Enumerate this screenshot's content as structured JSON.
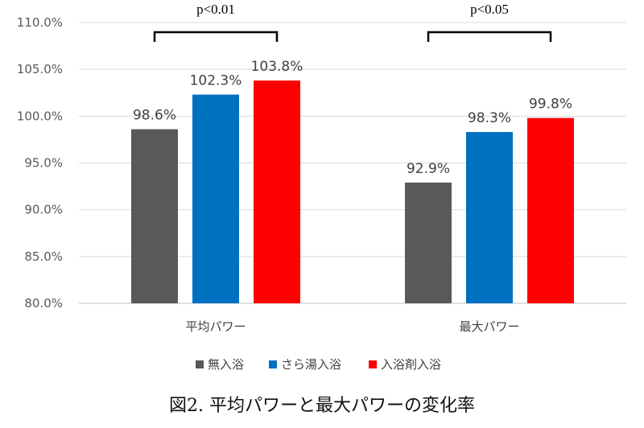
{
  "chart_data": {
    "type": "bar",
    "categories": [
      "平均パワー",
      "最大パワー"
    ],
    "series": [
      {
        "name": "無入浴",
        "color": "#595959",
        "values": [
          98.6,
          92.9
        ],
        "labels": [
          "98.6%",
          "92.9%"
        ]
      },
      {
        "name": "さら湯入浴",
        "color": "#0070C0",
        "values": [
          102.3,
          98.3
        ],
        "labels": [
          "102.3%",
          "98.3%"
        ]
      },
      {
        "name": "入浴剤入浴",
        "color": "#FF0000",
        "values": [
          103.8,
          99.8
        ],
        "labels": [
          "103.8%",
          "99.8%"
        ]
      }
    ],
    "ylim": [
      80,
      110
    ],
    "yticks": [
      80,
      85,
      90,
      95,
      100,
      105,
      110
    ],
    "ytick_labels": [
      "80.0%",
      "85.0%",
      "90.0%",
      "95.0%",
      "100.0%",
      "105.0%",
      "110.0%"
    ],
    "gridlines": true,
    "legend_position": "bottom",
    "significance": [
      {
        "category_index": 0,
        "from_series": 0,
        "to_series": 2,
        "label": "p<0.01"
      },
      {
        "category_index": 1,
        "from_series": 0,
        "to_series": 2,
        "label": "p<0.05"
      }
    ],
    "title": "図2. 平均パワーと最大パワーの変化率"
  }
}
